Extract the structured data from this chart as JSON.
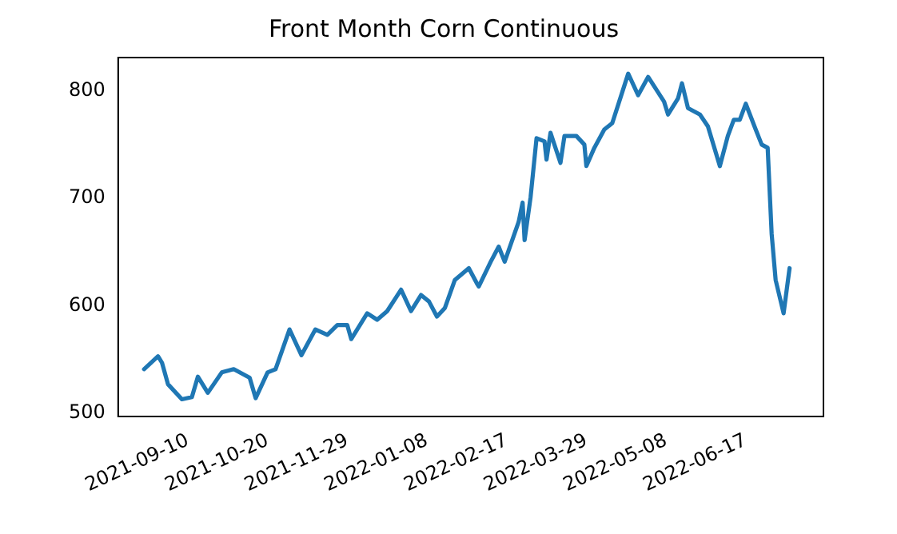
{
  "chart_data": {
    "type": "line",
    "title": "Front Month Corn Continuous",
    "x": [
      "2021-08-19",
      "2021-08-26",
      "2021-08-28",
      "2021-08-31",
      "2021-09-07",
      "2021-09-12",
      "2021-09-15",
      "2021-09-20",
      "2021-09-27",
      "2021-10-03",
      "2021-10-11",
      "2021-10-14",
      "2021-10-20",
      "2021-10-24",
      "2021-10-31",
      "2021-11-06",
      "2021-11-13",
      "2021-11-19",
      "2021-11-24",
      "2021-11-29",
      "2021-12-01",
      "2021-12-09",
      "2021-12-14",
      "2021-12-19",
      "2021-12-26",
      "2021-12-31",
      "2022-01-05",
      "2022-01-09",
      "2022-01-13",
      "2022-01-17",
      "2022-01-22",
      "2022-01-29",
      "2022-02-02",
      "2022-02-03",
      "2022-02-09",
      "2022-02-13",
      "2022-02-16",
      "2022-02-23",
      "2022-02-25",
      "2022-02-26",
      "2022-03-01",
      "2022-03-04",
      "2022-03-08",
      "2022-03-09",
      "2022-03-11",
      "2022-03-16",
      "2022-03-18",
      "2022-03-24",
      "2022-03-28",
      "2022-03-29",
      "2022-04-02",
      "2022-04-07",
      "2022-04-11",
      "2022-04-15",
      "2022-04-19",
      "2022-04-24",
      "2022-04-29",
      "2022-05-07",
      "2022-05-09",
      "2022-05-14",
      "2022-05-16",
      "2022-05-19",
      "2022-05-25",
      "2022-05-29",
      "2022-06-04",
      "2022-06-08",
      "2022-06-11",
      "2022-06-14",
      "2022-06-17",
      "2022-06-22",
      "2022-06-25",
      "2022-06-28",
      "2022-06-30",
      "2022-07-02",
      "2022-07-06",
      "2022-07-09"
    ],
    "series": [
      {
        "color": "#1f77b4",
        "values": [
          541,
          553,
          547,
          527,
          513,
          515,
          534,
          519,
          538,
          541,
          533,
          514,
          538,
          541,
          578,
          554,
          578,
          573,
          582,
          582,
          569,
          593,
          587,
          595,
          615,
          595,
          610,
          604,
          590,
          598,
          624,
          635,
          621,
          618,
          641,
          655,
          641,
          678,
          696,
          661,
          701,
          756,
          753,
          736,
          761,
          733,
          758,
          758,
          750,
          730,
          747,
          764,
          770,
          793,
          816,
          796,
          813,
          790,
          778,
          793,
          807,
          784,
          778,
          767,
          730,
          758,
          773,
          773,
          788,
          764,
          750,
          747,
          667,
          624,
          593,
          635
        ]
      }
    ],
    "xlim": [
      "2021-08-06",
      "2022-07-26"
    ],
    "xticks": [
      "2021-09-10",
      "2021-10-20",
      "2021-11-29",
      "2022-01-08",
      "2022-02-17",
      "2022-03-29",
      "2022-05-08",
      "2022-06-17"
    ],
    "ylim": [
      497,
      831
    ],
    "yticks": [
      500,
      600,
      700,
      800
    ],
    "grid": false,
    "legend": false,
    "marker": "none",
    "line_style": "solid"
  }
}
